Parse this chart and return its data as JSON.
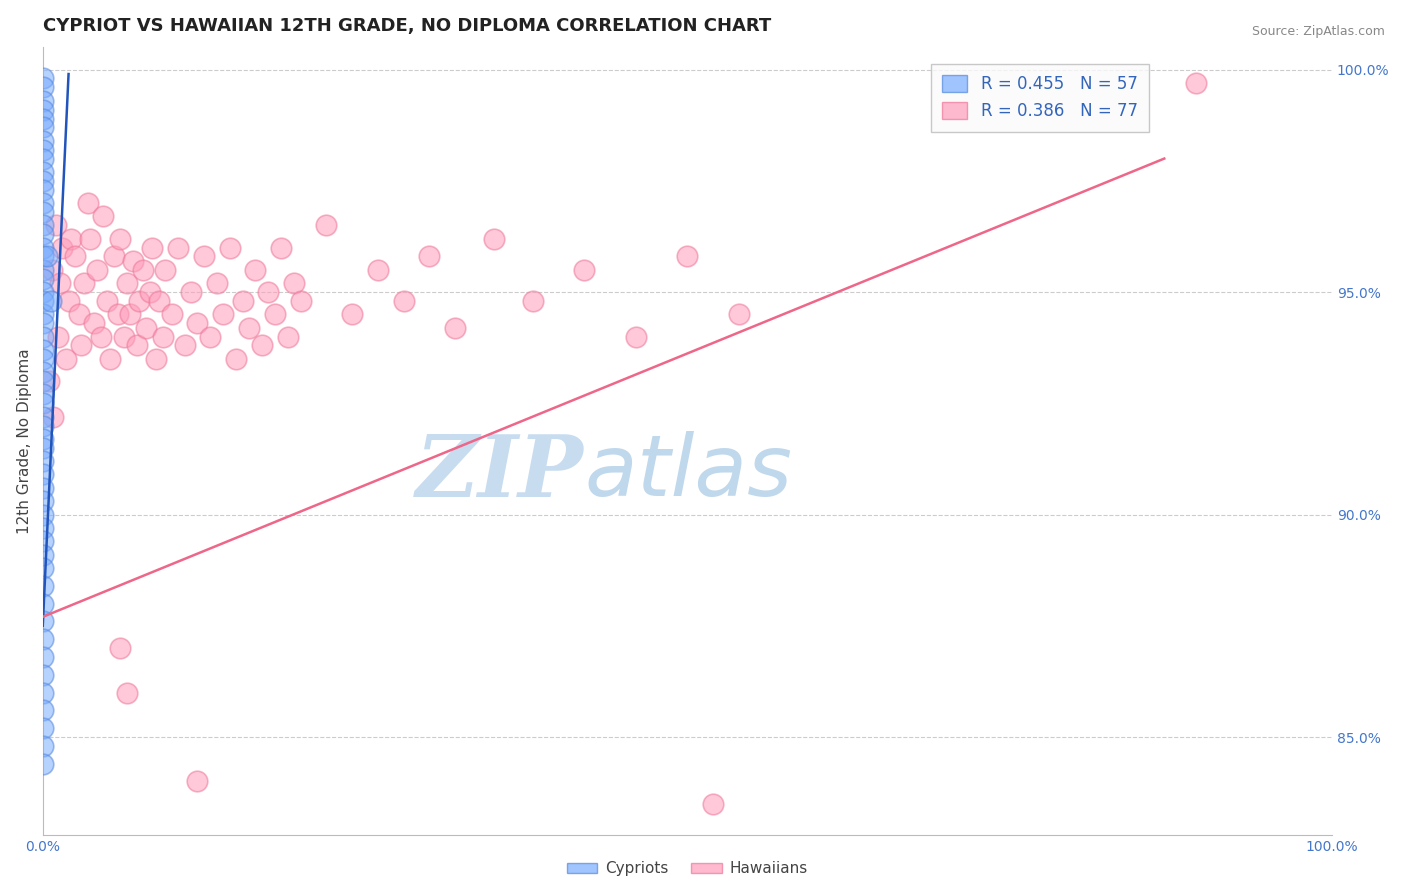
{
  "title": "CYPRIOT VS HAWAIIAN 12TH GRADE, NO DIPLOMA CORRELATION CHART",
  "source": "Source: ZipAtlas.com",
  "ylabel": "12th Grade, No Diploma",
  "xlim": [
    0.0,
    1.0
  ],
  "ylim": [
    0.828,
    1.005
  ],
  "x_tick_labels": [
    "0.0%",
    "100.0%"
  ],
  "x_tick_values": [
    0.0,
    1.0
  ],
  "y_tick_labels": [
    "85.0%",
    "90.0%",
    "95.0%",
    "100.0%"
  ],
  "y_tick_values": [
    0.85,
    0.9,
    0.95,
    1.0
  ],
  "legend_cypriot_R": "R = 0.455",
  "legend_cypriot_N": "N = 57",
  "legend_hawaiian_R": "R = 0.386",
  "legend_hawaiian_N": "N = 77",
  "cypriot_color": "#7AADFF",
  "hawaiian_color": "#FF9DBB",
  "cypriot_edge_color": "#5588DD",
  "hawaiian_edge_color": "#EE7799",
  "cypriot_line_color": "#2255BB",
  "hawaiian_line_color": "#EE6688",
  "watermark_zip_color": "#C8DCF0",
  "watermark_atlas_color": "#C0D8EC",
  "background_color": "#FFFFFF",
  "grid_color": "#CCCCCC",
  "legend_box_color": "#EEEEEE",
  "cypriot_points": [
    [
      0.0005,
      0.998
    ],
    [
      0.0005,
      0.996
    ],
    [
      0.0005,
      0.993
    ],
    [
      0.0005,
      0.991
    ],
    [
      0.0005,
      0.989
    ],
    [
      0.0005,
      0.987
    ],
    [
      0.0005,
      0.984
    ],
    [
      0.0005,
      0.982
    ],
    [
      0.0005,
      0.98
    ],
    [
      0.0005,
      0.977
    ],
    [
      0.0005,
      0.975
    ],
    [
      0.0005,
      0.973
    ],
    [
      0.0005,
      0.97
    ],
    [
      0.0005,
      0.968
    ],
    [
      0.0005,
      0.965
    ],
    [
      0.0005,
      0.963
    ],
    [
      0.0005,
      0.96
    ],
    [
      0.0005,
      0.958
    ],
    [
      0.0005,
      0.955
    ],
    [
      0.0005,
      0.953
    ],
    [
      0.0005,
      0.95
    ],
    [
      0.0005,
      0.948
    ],
    [
      0.0005,
      0.945
    ],
    [
      0.0005,
      0.943
    ],
    [
      0.0005,
      0.94
    ],
    [
      0.0005,
      0.937
    ],
    [
      0.0005,
      0.935
    ],
    [
      0.0005,
      0.932
    ],
    [
      0.0005,
      0.93
    ],
    [
      0.0005,
      0.927
    ],
    [
      0.0005,
      0.925
    ],
    [
      0.0005,
      0.922
    ],
    [
      0.0005,
      0.92
    ],
    [
      0.0005,
      0.917
    ],
    [
      0.0005,
      0.915
    ],
    [
      0.0005,
      0.912
    ],
    [
      0.0005,
      0.909
    ],
    [
      0.0005,
      0.906
    ],
    [
      0.0005,
      0.903
    ],
    [
      0.0005,
      0.9
    ],
    [
      0.0005,
      0.897
    ],
    [
      0.0005,
      0.894
    ],
    [
      0.0005,
      0.891
    ],
    [
      0.0005,
      0.888
    ],
    [
      0.0005,
      0.884
    ],
    [
      0.0005,
      0.88
    ],
    [
      0.0005,
      0.876
    ],
    [
      0.0005,
      0.872
    ],
    [
      0.0005,
      0.868
    ],
    [
      0.0005,
      0.864
    ],
    [
      0.0005,
      0.86
    ],
    [
      0.0005,
      0.856
    ],
    [
      0.0005,
      0.852
    ],
    [
      0.0005,
      0.848
    ],
    [
      0.0005,
      0.844
    ],
    [
      0.003,
      0.958
    ],
    [
      0.006,
      0.948
    ]
  ],
  "hawaiian_points": [
    [
      0.005,
      0.93
    ],
    [
      0.007,
      0.955
    ],
    [
      0.008,
      0.922
    ],
    [
      0.01,
      0.965
    ],
    [
      0.012,
      0.94
    ],
    [
      0.013,
      0.952
    ],
    [
      0.015,
      0.96
    ],
    [
      0.018,
      0.935
    ],
    [
      0.02,
      0.948
    ],
    [
      0.022,
      0.962
    ],
    [
      0.025,
      0.958
    ],
    [
      0.028,
      0.945
    ],
    [
      0.03,
      0.938
    ],
    [
      0.032,
      0.952
    ],
    [
      0.035,
      0.97
    ],
    [
      0.037,
      0.962
    ],
    [
      0.04,
      0.943
    ],
    [
      0.042,
      0.955
    ],
    [
      0.045,
      0.94
    ],
    [
      0.047,
      0.967
    ],
    [
      0.05,
      0.948
    ],
    [
      0.052,
      0.935
    ],
    [
      0.055,
      0.958
    ],
    [
      0.058,
      0.945
    ],
    [
      0.06,
      0.962
    ],
    [
      0.063,
      0.94
    ],
    [
      0.065,
      0.952
    ],
    [
      0.068,
      0.945
    ],
    [
      0.07,
      0.957
    ],
    [
      0.073,
      0.938
    ],
    [
      0.075,
      0.948
    ],
    [
      0.078,
      0.955
    ],
    [
      0.08,
      0.942
    ],
    [
      0.083,
      0.95
    ],
    [
      0.085,
      0.96
    ],
    [
      0.088,
      0.935
    ],
    [
      0.09,
      0.948
    ],
    [
      0.093,
      0.94
    ],
    [
      0.095,
      0.955
    ],
    [
      0.1,
      0.945
    ],
    [
      0.105,
      0.96
    ],
    [
      0.11,
      0.938
    ],
    [
      0.115,
      0.95
    ],
    [
      0.12,
      0.943
    ],
    [
      0.125,
      0.958
    ],
    [
      0.13,
      0.94
    ],
    [
      0.135,
      0.952
    ],
    [
      0.14,
      0.945
    ],
    [
      0.145,
      0.96
    ],
    [
      0.15,
      0.935
    ],
    [
      0.155,
      0.948
    ],
    [
      0.16,
      0.942
    ],
    [
      0.165,
      0.955
    ],
    [
      0.17,
      0.938
    ],
    [
      0.175,
      0.95
    ],
    [
      0.18,
      0.945
    ],
    [
      0.185,
      0.96
    ],
    [
      0.19,
      0.94
    ],
    [
      0.195,
      0.952
    ],
    [
      0.2,
      0.948
    ],
    [
      0.22,
      0.965
    ],
    [
      0.24,
      0.945
    ],
    [
      0.26,
      0.955
    ],
    [
      0.28,
      0.948
    ],
    [
      0.3,
      0.958
    ],
    [
      0.32,
      0.942
    ],
    [
      0.35,
      0.962
    ],
    [
      0.38,
      0.948
    ],
    [
      0.42,
      0.955
    ],
    [
      0.46,
      0.94
    ],
    [
      0.5,
      0.958
    ],
    [
      0.54,
      0.945
    ],
    [
      0.52,
      0.835
    ],
    [
      0.06,
      0.87
    ],
    [
      0.065,
      0.86
    ],
    [
      0.12,
      0.84
    ],
    [
      0.895,
      0.997
    ]
  ],
  "cypriot_line_x": [
    0.0,
    0.02
  ],
  "cypriot_line_y": [
    0.875,
    0.999
  ],
  "hawaiian_line_x": [
    0.0,
    0.87
  ],
  "hawaiian_line_y": [
    0.877,
    0.98
  ]
}
